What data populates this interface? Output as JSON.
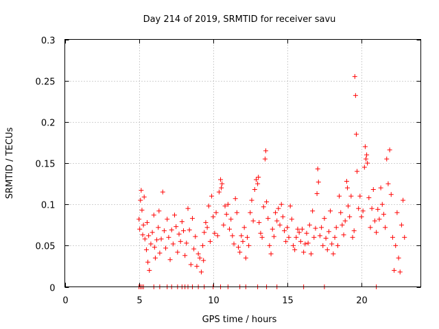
{
  "chart_data": {
    "type": "scatter",
    "title": "Day 214 of 2019, SRMTID for receiver savu",
    "xlabel": "GPS time / hours",
    "ylabel": "SRMTID / TECUs",
    "xlim": [
      0,
      24
    ],
    "ylim": [
      0,
      0.3
    ],
    "x_ticks": [
      0,
      5,
      10,
      15,
      20
    ],
    "y_ticks": [
      0,
      0.05,
      0.1,
      0.15,
      0.2,
      0.25,
      0.3
    ],
    "x_tick_labels": [
      "0",
      "5",
      "10",
      "15",
      "20"
    ],
    "y_tick_labels": [
      "0",
      "0.05",
      "0.1",
      "0.15",
      "0.2",
      "0.25",
      "0.3"
    ],
    "grid": true,
    "marker": "+",
    "series_color": "#ff0000",
    "series": [
      {
        "name": "SRMTID",
        "points": [
          [
            5.0,
            0.0
          ],
          [
            5.1,
            0.0
          ],
          [
            5.2,
            0.0
          ],
          [
            5.3,
            0.0
          ],
          [
            6.0,
            0.0
          ],
          [
            6.4,
            0.0
          ],
          [
            6.9,
            0.0
          ],
          [
            7.2,
            0.0
          ],
          [
            7.6,
            0.0
          ],
          [
            7.9,
            0.0
          ],
          [
            8.1,
            0.0
          ],
          [
            8.3,
            0.0
          ],
          [
            8.6,
            0.0
          ],
          [
            9.0,
            0.0
          ],
          [
            9.4,
            0.0
          ],
          [
            10.0,
            0.0
          ],
          [
            10.5,
            0.0
          ],
          [
            11.0,
            0.0
          ],
          [
            11.8,
            0.0
          ],
          [
            12.2,
            0.0
          ],
          [
            13.0,
            0.0
          ],
          [
            13.6,
            0.0
          ],
          [
            14.3,
            0.0
          ],
          [
            16.1,
            0.0
          ],
          [
            17.5,
            0.0
          ],
          [
            21.0,
            0.0
          ],
          [
            5.0,
            0.082
          ],
          [
            5.05,
            0.07
          ],
          [
            5.1,
            0.105
          ],
          [
            5.15,
            0.117
          ],
          [
            5.2,
            0.093
          ],
          [
            5.25,
            0.063
          ],
          [
            5.3,
            0.075
          ],
          [
            5.35,
            0.109
          ],
          [
            5.4,
            0.058
          ],
          [
            5.5,
            0.045
          ],
          [
            5.55,
            0.078
          ],
          [
            5.6,
            0.03
          ],
          [
            5.65,
            0.062
          ],
          [
            5.7,
            0.02
          ],
          [
            5.8,
            0.052
          ],
          [
            5.9,
            0.066
          ],
          [
            6.0,
            0.087
          ],
          [
            6.05,
            0.048
          ],
          [
            6.1,
            0.035
          ],
          [
            6.2,
            0.057
          ],
          [
            6.3,
            0.072
          ],
          [
            6.35,
            0.092
          ],
          [
            6.4,
            0.041
          ],
          [
            6.5,
            0.058
          ],
          [
            6.6,
            0.115
          ],
          [
            6.7,
            0.068
          ],
          [
            6.8,
            0.047
          ],
          [
            6.9,
            0.082
          ],
          [
            7.0,
            0.06
          ],
          [
            7.1,
            0.033
          ],
          [
            7.2,
            0.069
          ],
          [
            7.3,
            0.052
          ],
          [
            7.4,
            0.087
          ],
          [
            7.5,
            0.073
          ],
          [
            7.6,
            0.042
          ],
          [
            7.7,
            0.064
          ],
          [
            7.8,
            0.055
          ],
          [
            7.9,
            0.079
          ],
          [
            8.0,
            0.068
          ],
          [
            8.1,
            0.038
          ],
          [
            8.2,
            0.053
          ],
          [
            8.3,
            0.095
          ],
          [
            8.4,
            0.069
          ],
          [
            8.5,
            0.027
          ],
          [
            8.6,
            0.083
          ],
          [
            8.7,
            0.046
          ],
          [
            8.8,
            0.061
          ],
          [
            8.9,
            0.025
          ],
          [
            9.0,
            0.04
          ],
          [
            9.1,
            0.035
          ],
          [
            9.2,
            0.018
          ],
          [
            9.3,
            0.05
          ],
          [
            9.35,
            0.032
          ],
          [
            9.4,
            0.066
          ],
          [
            9.5,
            0.078
          ],
          [
            9.6,
            0.072
          ],
          [
            9.7,
            0.098
          ],
          [
            9.8,
            0.055
          ],
          [
            9.9,
            0.11
          ],
          [
            10.0,
            0.085
          ],
          [
            10.1,
            0.065
          ],
          [
            10.2,
            0.09
          ],
          [
            10.3,
            0.062
          ],
          [
            10.4,
            0.115
          ],
          [
            10.5,
            0.13
          ],
          [
            10.55,
            0.12
          ],
          [
            10.6,
            0.125
          ],
          [
            10.7,
            0.075
          ],
          [
            10.8,
            0.098
          ],
          [
            10.9,
            0.088
          ],
          [
            11.0,
            0.1
          ],
          [
            11.1,
            0.07
          ],
          [
            11.2,
            0.082
          ],
          [
            11.3,
            0.062
          ],
          [
            11.4,
            0.052
          ],
          [
            11.5,
            0.107
          ],
          [
            11.6,
            0.09
          ],
          [
            11.7,
            0.048
          ],
          [
            11.8,
            0.042
          ],
          [
            11.9,
            0.062
          ],
          [
            12.0,
            0.055
          ],
          [
            12.1,
            0.072
          ],
          [
            12.2,
            0.035
          ],
          [
            12.3,
            0.06
          ],
          [
            12.4,
            0.05
          ],
          [
            12.5,
            0.09
          ],
          [
            12.6,
            0.105
          ],
          [
            12.7,
            0.08
          ],
          [
            12.8,
            0.118
          ],
          [
            12.9,
            0.13
          ],
          [
            13.0,
            0.125
          ],
          [
            13.05,
            0.133
          ],
          [
            13.1,
            0.078
          ],
          [
            13.2,
            0.065
          ],
          [
            13.3,
            0.06
          ],
          [
            13.4,
            0.097
          ],
          [
            13.5,
            0.155
          ],
          [
            13.55,
            0.165
          ],
          [
            13.6,
            0.103
          ],
          [
            13.7,
            0.083
          ],
          [
            13.8,
            0.05
          ],
          [
            13.9,
            0.04
          ],
          [
            14.0,
            0.07
          ],
          [
            14.1,
            0.061
          ],
          [
            14.2,
            0.09
          ],
          [
            14.3,
            0.08
          ],
          [
            14.4,
            0.095
          ],
          [
            14.5,
            0.075
          ],
          [
            14.6,
            0.1
          ],
          [
            14.7,
            0.085
          ],
          [
            14.8,
            0.068
          ],
          [
            14.9,
            0.055
          ],
          [
            15.0,
            0.072
          ],
          [
            15.1,
            0.06
          ],
          [
            15.2,
            0.098
          ],
          [
            15.3,
            0.082
          ],
          [
            15.4,
            0.05
          ],
          [
            15.5,
            0.045
          ],
          [
            15.6,
            0.06
          ],
          [
            15.7,
            0.07
          ],
          [
            15.8,
            0.066
          ],
          [
            15.9,
            0.055
          ],
          [
            16.0,
            0.07
          ],
          [
            16.1,
            0.042
          ],
          [
            16.2,
            0.052
          ],
          [
            16.3,
            0.065
          ],
          [
            16.4,
            0.053
          ],
          [
            16.5,
            0.075
          ],
          [
            16.6,
            0.04
          ],
          [
            16.7,
            0.092
          ],
          [
            16.8,
            0.06
          ],
          [
            16.9,
            0.071
          ],
          [
            17.0,
            0.113
          ],
          [
            17.05,
            0.143
          ],
          [
            17.1,
            0.127
          ],
          [
            17.2,
            0.062
          ],
          [
            17.3,
            0.072
          ],
          [
            17.4,
            0.05
          ],
          [
            17.5,
            0.083
          ],
          [
            17.6,
            0.059
          ],
          [
            17.7,
            0.045
          ],
          [
            17.8,
            0.067
          ],
          [
            17.9,
            0.092
          ],
          [
            18.0,
            0.052
          ],
          [
            18.1,
            0.04
          ],
          [
            18.2,
            0.06
          ],
          [
            18.3,
            0.072
          ],
          [
            18.4,
            0.05
          ],
          [
            18.5,
            0.11
          ],
          [
            18.6,
            0.09
          ],
          [
            18.7,
            0.075
          ],
          [
            18.8,
            0.063
          ],
          [
            18.9,
            0.08
          ],
          [
            19.0,
            0.128
          ],
          [
            19.05,
            0.12
          ],
          [
            19.1,
            0.098
          ],
          [
            19.2,
            0.085
          ],
          [
            19.3,
            0.11
          ],
          [
            19.4,
            0.06
          ],
          [
            19.5,
            0.068
          ],
          [
            19.55,
            0.255
          ],
          [
            19.6,
            0.232
          ],
          [
            19.65,
            0.185
          ],
          [
            19.7,
            0.14
          ],
          [
            19.8,
            0.095
          ],
          [
            19.9,
            0.11
          ],
          [
            20.0,
            0.085
          ],
          [
            20.1,
            0.092
          ],
          [
            20.2,
            0.145
          ],
          [
            20.25,
            0.17
          ],
          [
            20.3,
            0.155
          ],
          [
            20.35,
            0.16
          ],
          [
            20.4,
            0.15
          ],
          [
            20.5,
            0.108
          ],
          [
            20.6,
            0.072
          ],
          [
            20.7,
            0.095
          ],
          [
            20.8,
            0.118
          ],
          [
            20.9,
            0.08
          ],
          [
            21.0,
            0.066
          ],
          [
            21.1,
            0.094
          ],
          [
            21.2,
            0.082
          ],
          [
            21.3,
            0.12
          ],
          [
            21.4,
            0.1
          ],
          [
            21.5,
            0.088
          ],
          [
            21.6,
            0.072
          ],
          [
            21.7,
            0.155
          ],
          [
            21.8,
            0.125
          ],
          [
            21.9,
            0.166
          ],
          [
            22.0,
            0.112
          ],
          [
            22.1,
            0.06
          ],
          [
            22.2,
            0.02
          ],
          [
            22.3,
            0.05
          ],
          [
            22.4,
            0.09
          ],
          [
            22.5,
            0.035
          ],
          [
            22.6,
            0.018
          ],
          [
            22.7,
            0.075
          ],
          [
            22.8,
            0.105
          ],
          [
            22.9,
            0.06
          ]
        ]
      }
    ]
  }
}
